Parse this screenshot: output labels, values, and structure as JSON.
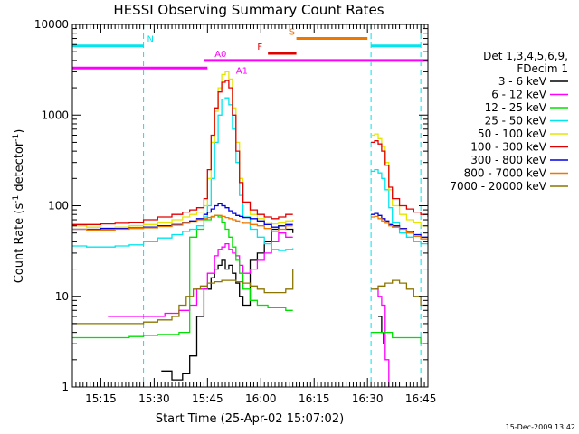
{
  "chart_data": {
    "type": "line",
    "title": "HESSI Observing Summary Count Rates",
    "xlabel": "Start Time (25-Apr-02 15:07:02)",
    "ylabel_main": "Count Rate (s",
    "ylabel_sup1": "-1",
    "ylabel_mid": " detector",
    "ylabel_sup2": "-1",
    "ylabel_end": ")",
    "y_scale": "log",
    "ylim": [
      1,
      10000
    ],
    "xlim_minutes": [
      0,
      100
    ],
    "x_ticks": [
      {
        "m": 8,
        "label": "15:15"
      },
      {
        "m": 23,
        "label": "15:30"
      },
      {
        "m": 38,
        "label": "15:45"
      },
      {
        "m": 53,
        "label": "16:00"
      },
      {
        "m": 68,
        "label": "16:15"
      },
      {
        "m": 83,
        "label": "16:30"
      },
      {
        "m": 98,
        "label": "16:45"
      }
    ],
    "y_ticks": [
      {
        "v": 1,
        "label": "1"
      },
      {
        "v": 10,
        "label": "10"
      },
      {
        "v": 100,
        "label": "100"
      },
      {
        "v": 1000,
        "label": "1000"
      },
      {
        "v": 10000,
        "label": "10000"
      }
    ],
    "legend": {
      "header_line1": "Det 1,3,4,5,6,9,",
      "header_line2": "FDecim 1",
      "placement": "right"
    },
    "vertical_markers_minutes": [
      0,
      20,
      84,
      98
    ],
    "flag_bars": [
      {
        "label": "N",
        "color": "#00e5ee",
        "value": 5800,
        "segments": [
          [
            0,
            20
          ],
          [
            84,
            98
          ]
        ],
        "label_m": 21
      },
      {
        "label": "S",
        "color": "#ee7700",
        "value": 7000,
        "segments": [
          [
            63,
            83
          ]
        ],
        "label_m": 61
      },
      {
        "label": "F",
        "color": "#e00000",
        "value": 4800,
        "segments": [
          [
            55,
            63
          ]
        ],
        "label_m": 52
      },
      {
        "label": "A0",
        "color": "#ff00ff",
        "value": 4000,
        "segments": [
          [
            37,
            100
          ]
        ],
        "label_m": 40
      },
      {
        "label": "A1",
        "color": "#ff00ff",
        "value": 3300,
        "segments": [
          [
            0,
            38
          ]
        ],
        "label_m": 46
      }
    ],
    "gap_minutes": [
      63,
      84
    ],
    "series": [
      {
        "name": "3 - 6 keV",
        "color": "#000000",
        "x": [
          25,
          28,
          31,
          33,
          35,
          37,
          39,
          40,
          41,
          42,
          43,
          44,
          45,
          46,
          47,
          48,
          50,
          52,
          54,
          56,
          58,
          60,
          62,
          86,
          87,
          87.5
        ],
        "y": [
          1.5,
          1.2,
          1.4,
          2.2,
          6,
          12,
          16,
          20,
          22,
          25,
          20,
          22,
          18,
          14,
          10,
          8,
          25,
          30,
          40,
          55,
          60,
          55,
          50,
          6,
          4,
          3
        ]
      },
      {
        "name": "6 - 12 keV",
        "color": "#ff00ff",
        "x": [
          10,
          14,
          18,
          22,
          26,
          30,
          33,
          35,
          38,
          40,
          41,
          42,
          43,
          44,
          45,
          46,
          47,
          48,
          50,
          52,
          54,
          56,
          58,
          60,
          62,
          85,
          86,
          87,
          88,
          89
        ],
        "y": [
          6,
          6,
          6,
          6,
          6.5,
          7,
          8,
          12,
          18,
          28,
          33,
          35,
          38,
          33,
          30,
          28,
          22,
          18,
          20,
          25,
          30,
          40,
          50,
          45,
          45,
          12,
          10,
          8,
          2,
          1
        ]
      },
      {
        "name": "12 - 25 keV",
        "color": "#00e000",
        "x": [
          0,
          4,
          8,
          12,
          16,
          20,
          24,
          28,
          30,
          32,
          33,
          35,
          37,
          39,
          40,
          41,
          42,
          43,
          44,
          45,
          46,
          47,
          48,
          50,
          52,
          55,
          58,
          60,
          62,
          84,
          86,
          88,
          90,
          92,
          94,
          96,
          98,
          100
        ],
        "y": [
          3.5,
          3.5,
          3.5,
          3.5,
          3.6,
          3.7,
          3.8,
          3.8,
          4,
          4,
          45,
          55,
          70,
          75,
          78,
          75,
          65,
          55,
          45,
          35,
          25,
          18,
          12,
          9,
          8,
          7.5,
          7.5,
          7,
          7,
          4,
          4,
          4,
          3.5,
          3.5,
          3.5,
          3.5,
          3,
          3
        ]
      },
      {
        "name": "25 - 50 keV",
        "color": "#00e5ee",
        "x": [
          0,
          4,
          8,
          12,
          16,
          20,
          24,
          28,
          31,
          33,
          35,
          37,
          38,
          39,
          40,
          41,
          42,
          43,
          44,
          45,
          46,
          47,
          48,
          50,
          52,
          54,
          56,
          58,
          60,
          62,
          84,
          85,
          86,
          87,
          88,
          89,
          90,
          92,
          94,
          96,
          98,
          100
        ],
        "y": [
          36,
          35,
          35,
          36,
          37,
          40,
          44,
          48,
          52,
          55,
          60,
          75,
          100,
          200,
          500,
          1000,
          1500,
          1550,
          1300,
          700,
          300,
          130,
          75,
          55,
          45,
          38,
          33,
          32,
          33,
          34,
          240,
          250,
          230,
          200,
          150,
          95,
          65,
          50,
          45,
          40,
          38,
          37
        ]
      },
      {
        "name": "50 - 100 keV",
        "color": "#e5e500",
        "x": [
          0,
          4,
          8,
          12,
          16,
          20,
          24,
          28,
          31,
          33,
          35,
          37,
          38,
          39,
          40,
          41,
          42,
          43,
          44,
          45,
          46,
          47,
          48,
          50,
          52,
          54,
          56,
          58,
          60,
          62,
          84,
          85,
          86,
          87,
          88,
          89,
          90,
          92,
          94,
          96,
          98,
          100
        ],
        "y": [
          60,
          58,
          57,
          58,
          60,
          62,
          65,
          70,
          75,
          80,
          85,
          100,
          200,
          500,
          1100,
          2000,
          2800,
          3000,
          2500,
          1200,
          500,
          200,
          110,
          80,
          72,
          66,
          63,
          65,
          68,
          70,
          600,
          620,
          550,
          450,
          300,
          150,
          100,
          80,
          70,
          65,
          60,
          60
        ]
      },
      {
        "name": "100 - 300 keV",
        "color": "#e00000",
        "x": [
          0,
          4,
          8,
          12,
          16,
          20,
          24,
          28,
          31,
          33,
          35,
          37,
          38,
          39,
          40,
          41,
          42,
          43,
          44,
          45,
          46,
          47,
          48,
          50,
          52,
          54,
          56,
          58,
          60,
          62,
          84,
          85,
          86,
          87,
          88,
          89,
          90,
          92,
          94,
          96,
          98,
          100
        ],
        "y": [
          62,
          62,
          63,
          64,
          65,
          70,
          75,
          80,
          85,
          90,
          95,
          120,
          250,
          600,
          1200,
          1800,
          2300,
          2400,
          2000,
          1000,
          400,
          180,
          110,
          90,
          80,
          75,
          72,
          75,
          80,
          80,
          500,
          520,
          480,
          400,
          280,
          160,
          120,
          100,
          92,
          85,
          80,
          75
        ]
      },
      {
        "name": "300 - 800 keV",
        "color": "#0000e0",
        "x": [
          0,
          4,
          8,
          12,
          16,
          20,
          24,
          28,
          31,
          33,
          35,
          37,
          38,
          39,
          40,
          41,
          42,
          43,
          44,
          45,
          46,
          47,
          48,
          50,
          52,
          54,
          56,
          58,
          60,
          62,
          84,
          85,
          86,
          87,
          88,
          89,
          90,
          92,
          94,
          96,
          98,
          100
        ],
        "y": [
          55,
          55,
          56,
          56,
          57,
          58,
          60,
          62,
          65,
          68,
          72,
          80,
          85,
          92,
          100,
          105,
          100,
          95,
          88,
          82,
          78,
          76,
          74,
          72,
          68,
          62,
          58,
          60,
          62,
          62,
          80,
          82,
          78,
          72,
          68,
          62,
          60,
          56,
          52,
          48,
          45,
          42
        ]
      },
      {
        "name": "800 - 7000 keV",
        "color": "#ee7700",
        "x": [
          0,
          4,
          8,
          12,
          16,
          20,
          24,
          28,
          31,
          33,
          35,
          37,
          38,
          39,
          40,
          41,
          42,
          43,
          44,
          45,
          46,
          47,
          48,
          50,
          52,
          54,
          56,
          58,
          60,
          62,
          84,
          85,
          86,
          87,
          88,
          89,
          90,
          92,
          94,
          96,
          98,
          100
        ],
        "y": [
          55,
          54,
          54,
          55,
          56,
          57,
          59,
          61,
          64,
          66,
          70,
          72,
          74,
          76,
          78,
          78,
          76,
          74,
          72,
          70,
          68,
          66,
          64,
          62,
          60,
          56,
          52,
          55,
          60,
          60,
          75,
          76,
          72,
          68,
          64,
          60,
          58,
          55,
          50,
          46,
          43,
          40
        ]
      },
      {
        "name": "7000 - 20000 keV",
        "color": "#8b7500",
        "x": [
          0,
          4,
          8,
          12,
          16,
          20,
          24,
          28,
          30,
          32,
          34,
          36,
          38,
          40,
          42,
          44,
          46,
          48,
          50,
          52,
          54,
          56,
          58,
          60,
          62,
          84,
          86,
          88,
          90,
          92,
          94,
          96,
          98,
          100
        ],
        "y": [
          5,
          5,
          5,
          5,
          5,
          5.2,
          5.5,
          6,
          8,
          10,
          12,
          13,
          14,
          14.5,
          15,
          15,
          14.5,
          14,
          13,
          12,
          11,
          11,
          11,
          12,
          20,
          12,
          13,
          14,
          15,
          14,
          12,
          10,
          8,
          6
        ]
      }
    ],
    "timestamp": "15-Dec-2009 13:42"
  }
}
